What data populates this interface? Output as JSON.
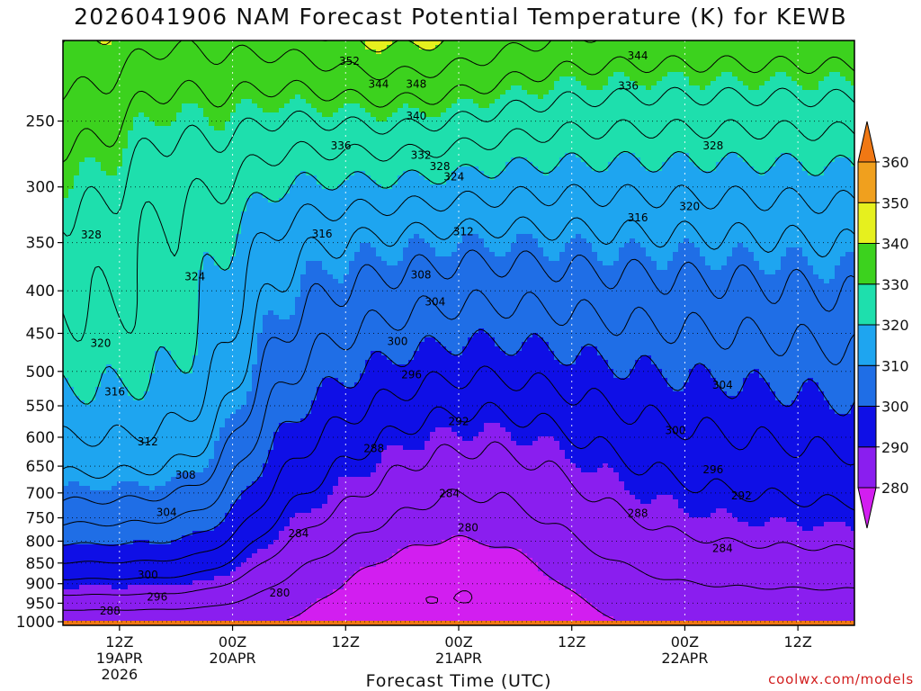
{
  "chart_data": {
    "type": "contour",
    "title": "2026041906 NAM Forecast Potential Temperature (K) for KEWB",
    "xlabel": "Forecast Time (UTC)",
    "ylabel": "",
    "x_ticks": [
      {
        "t": 6,
        "lines": [
          "12Z",
          "19APR",
          "2026"
        ]
      },
      {
        "t": 18,
        "lines": [
          "00Z",
          "20APR"
        ]
      },
      {
        "t": 30,
        "lines": [
          "12Z"
        ]
      },
      {
        "t": 42,
        "lines": [
          "00Z",
          "21APR"
        ]
      },
      {
        "t": 54,
        "lines": [
          "12Z"
        ]
      },
      {
        "t": 66,
        "lines": [
          "00Z",
          "22APR"
        ]
      },
      {
        "t": 78,
        "lines": [
          "12Z"
        ]
      }
    ],
    "x_range_hours": [
      0,
      84
    ],
    "y_ticks": [
      250,
      300,
      350,
      400,
      450,
      500,
      550,
      600,
      650,
      700,
      750,
      800,
      850,
      900,
      950,
      1000
    ],
    "y_range_hpa": [
      200,
      1010
    ],
    "y_scale": "log-pressure",
    "grid": true,
    "colorbar": {
      "levels": [
        280,
        290,
        300,
        310,
        320,
        330,
        340,
        350,
        360
      ],
      "labels": [
        "280",
        "290",
        "300",
        "310",
        "320",
        "330",
        "340",
        "350",
        "360"
      ],
      "colors": [
        "#d21ef0",
        "#8a1eef",
        "#0f0fe6",
        "#1f6ee6",
        "#1ea5f0",
        "#1edfad",
        "#3cd21e",
        "#e6f01e",
        "#f0a01e",
        "#f07814"
      ]
    },
    "ground_color": "#a0522d",
    "contour_interval_K": 4,
    "contour_labels": [
      {
        "v": "352",
        "t": 30.4,
        "p": 212
      },
      {
        "v": "344",
        "t": 33.5,
        "p": 226
      },
      {
        "v": "348",
        "t": 37.5,
        "p": 226
      },
      {
        "v": "344",
        "t": 61.0,
        "p": 209
      },
      {
        "v": "336",
        "t": 60.0,
        "p": 227
      },
      {
        "v": "340",
        "t": 37.5,
        "p": 247
      },
      {
        "v": "336",
        "t": 29.5,
        "p": 268
      },
      {
        "v": "332",
        "t": 38.0,
        "p": 275
      },
      {
        "v": "328",
        "t": 40.0,
        "p": 284
      },
      {
        "v": "324",
        "t": 41.5,
        "p": 292
      },
      {
        "v": "328",
        "t": 69.0,
        "p": 268
      },
      {
        "v": "320",
        "t": 66.5,
        "p": 317
      },
      {
        "v": "316",
        "t": 61.0,
        "p": 327
      },
      {
        "v": "312",
        "t": 42.5,
        "p": 340
      },
      {
        "v": "316",
        "t": 27.5,
        "p": 342
      },
      {
        "v": "328",
        "t": 3.0,
        "p": 343
      },
      {
        "v": "324",
        "t": 14.0,
        "p": 385
      },
      {
        "v": "308",
        "t": 38.0,
        "p": 383
      },
      {
        "v": "304",
        "t": 39.5,
        "p": 413
      },
      {
        "v": "320",
        "t": 4.0,
        "p": 463
      },
      {
        "v": "300",
        "t": 35.5,
        "p": 461
      },
      {
        "v": "296",
        "t": 37.0,
        "p": 505
      },
      {
        "v": "316",
        "t": 5.5,
        "p": 530
      },
      {
        "v": "304",
        "t": 70.0,
        "p": 520
      },
      {
        "v": "292",
        "t": 42.0,
        "p": 575
      },
      {
        "v": "300",
        "t": 65.0,
        "p": 590
      },
      {
        "v": "312",
        "t": 9.0,
        "p": 608
      },
      {
        "v": "288",
        "t": 33.0,
        "p": 620
      },
      {
        "v": "296",
        "t": 69.0,
        "p": 657
      },
      {
        "v": "308",
        "t": 13.0,
        "p": 667
      },
      {
        "v": "292",
        "t": 72.0,
        "p": 706
      },
      {
        "v": "284",
        "t": 41.0,
        "p": 702
      },
      {
        "v": "304",
        "t": 11.0,
        "p": 740
      },
      {
        "v": "288",
        "t": 61.0,
        "p": 742
      },
      {
        "v": "280",
        "t": 43.0,
        "p": 772
      },
      {
        "v": "284",
        "t": 25.0,
        "p": 784
      },
      {
        "v": "284",
        "t": 70.0,
        "p": 817
      },
      {
        "v": "300",
        "t": 9.0,
        "p": 880
      },
      {
        "v": "280",
        "t": 23.0,
        "p": 925
      },
      {
        "v": "296",
        "t": 10.0,
        "p": 935
      },
      {
        "v": "288",
        "t": 5.0,
        "p": 972
      }
    ],
    "theta_model": {
      "surface_theta_K": [
        292,
        286,
        280,
        278,
        279,
        279,
        278,
        277,
        278,
        279,
        280,
        281,
        282,
        281,
        280
      ],
      "surface_theta_times_h": [
        0,
        6,
        12,
        18,
        24,
        30,
        36,
        42,
        48,
        54,
        60,
        66,
        72,
        78,
        84
      ],
      "description_none": ""
    }
  },
  "credit": "coolwx.com/models"
}
